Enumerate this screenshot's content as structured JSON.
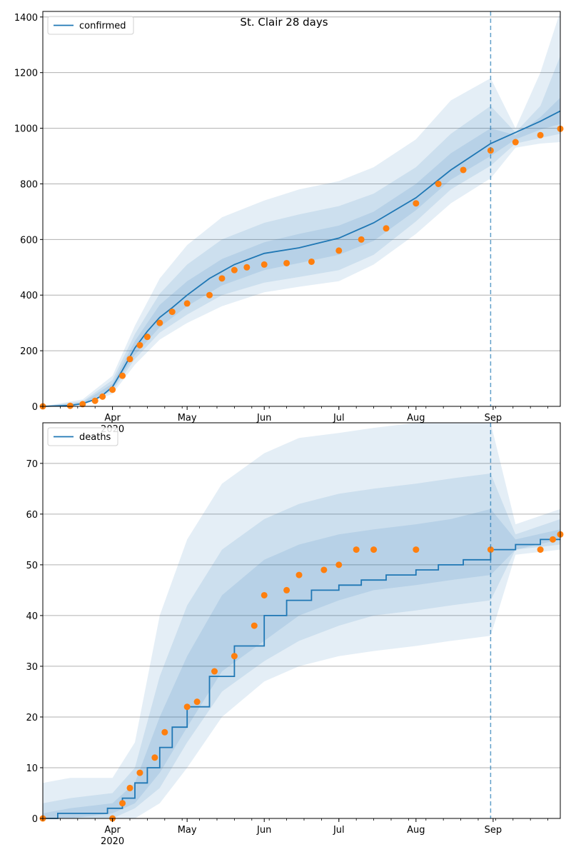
{
  "figure": {
    "title": "St. Clair 28 days"
  },
  "colors": {
    "model": "#1f77b4",
    "observed": "#ff7f0e",
    "band": "#1f77b4",
    "grid": "#b0b0b0",
    "forecast_line": "#1f77b4"
  },
  "chart_data": [
    {
      "type": "line",
      "title": "St. Clair 28 days",
      "legend": [
        "confirmed"
      ],
      "legend_position": "top-left",
      "grid": "horizontal",
      "xlim": [
        "2020-03-04",
        "2020-09-28"
      ],
      "ylim": [
        0,
        1420
      ],
      "y_ticks": [
        0,
        200,
        400,
        600,
        800,
        1000,
        1200,
        1400
      ],
      "x_ticks": [
        {
          "date": "2020-04-01",
          "label": "Apr",
          "sublabel": "2020"
        },
        {
          "date": "2020-05-01",
          "label": "May"
        },
        {
          "date": "2020-06-01",
          "label": "Jun"
        },
        {
          "date": "2020-07-01",
          "label": "Jul"
        },
        {
          "date": "2020-08-01",
          "label": "Aug"
        },
        {
          "date": "2020-09-01",
          "label": "Sep"
        }
      ],
      "forecast_start": "2020-08-31",
      "series": [
        {
          "name": "confirmed",
          "style": "line",
          "x": [
            "2020-03-04",
            "2020-03-15",
            "2020-03-20",
            "2020-03-25",
            "2020-03-28",
            "2020-04-01",
            "2020-04-05",
            "2020-04-10",
            "2020-04-15",
            "2020-04-20",
            "2020-04-25",
            "2020-05-01",
            "2020-05-10",
            "2020-05-20",
            "2020-06-01",
            "2020-06-15",
            "2020-07-01",
            "2020-07-15",
            "2020-08-01",
            "2020-08-15",
            "2020-08-31",
            "2020-09-10",
            "2020-09-20",
            "2020-09-28"
          ],
          "y": [
            0,
            3,
            10,
            25,
            40,
            70,
            130,
            210,
            270,
            320,
            355,
            400,
            460,
            510,
            550,
            570,
            605,
            660,
            750,
            850,
            945,
            985,
            1025,
            1062
          ]
        },
        {
          "style": "markers",
          "x": [
            "2020-03-04",
            "2020-03-15",
            "2020-03-20",
            "2020-03-25",
            "2020-03-28",
            "2020-04-01",
            "2020-04-05",
            "2020-04-08",
            "2020-04-12",
            "2020-04-15",
            "2020-04-20",
            "2020-04-25",
            "2020-05-01",
            "2020-05-10",
            "2020-05-15",
            "2020-05-20",
            "2020-05-25",
            "2020-06-01",
            "2020-06-10",
            "2020-06-20",
            "2020-07-01",
            "2020-07-10",
            "2020-07-20",
            "2020-08-01",
            "2020-08-10",
            "2020-08-20",
            "2020-08-31",
            "2020-09-10",
            "2020-09-20",
            "2020-09-28"
          ],
          "y": [
            0,
            2,
            8,
            20,
            35,
            60,
            110,
            170,
            220,
            250,
            300,
            340,
            370,
            400,
            460,
            490,
            500,
            510,
            515,
            520,
            560,
            600,
            640,
            730,
            800,
            850,
            920,
            950,
            975,
            998
          ]
        }
      ],
      "bands": [
        {
          "x": [
            "2020-03-04",
            "2020-03-20",
            "2020-04-01",
            "2020-04-10",
            "2020-04-20",
            "2020-05-01",
            "2020-05-15",
            "2020-06-01",
            "2020-06-15",
            "2020-07-01",
            "2020-07-15",
            "2020-08-01",
            "2020-08-15",
            "2020-08-31",
            "2020-09-10",
            "2020-09-20",
            "2020-09-28"
          ],
          "lower": [
            0,
            5,
            45,
            150,
            240,
            300,
            360,
            410,
            430,
            450,
            510,
            620,
            730,
            820,
            930,
            945,
            950
          ],
          "upper": [
            0,
            25,
            110,
            290,
            460,
            580,
            680,
            740,
            780,
            810,
            860,
            960,
            1100,
            1180,
            1000,
            1200,
            1420
          ]
        },
        {
          "x": [
            "2020-03-04",
            "2020-03-20",
            "2020-04-01",
            "2020-04-10",
            "2020-04-20",
            "2020-05-01",
            "2020-05-15",
            "2020-06-01",
            "2020-06-15",
            "2020-07-01",
            "2020-07-15",
            "2020-08-01",
            "2020-08-15",
            "2020-08-31",
            "2020-09-10",
            "2020-09-20",
            "2020-09-28"
          ],
          "lower": [
            0,
            7,
            55,
            170,
            265,
            330,
            400,
            445,
            465,
            490,
            545,
            665,
            780,
            865,
            945,
            965,
            980
          ],
          "upper": [
            0,
            18,
            95,
            260,
            405,
            510,
            600,
            660,
            690,
            720,
            765,
            860,
            980,
            1080,
            985,
            1080,
            1260
          ]
        },
        {
          "x": [
            "2020-03-04",
            "2020-03-20",
            "2020-04-01",
            "2020-04-10",
            "2020-04-20",
            "2020-05-01",
            "2020-05-15",
            "2020-06-01",
            "2020-06-15",
            "2020-07-01",
            "2020-07-15",
            "2020-08-01",
            "2020-08-15",
            "2020-08-31",
            "2020-09-10",
            "2020-09-20",
            "2020-09-28"
          ],
          "lower": [
            0,
            8,
            62,
            185,
            285,
            360,
            435,
            490,
            515,
            545,
            595,
            705,
            815,
            900,
            960,
            995,
            1015
          ],
          "upper": [
            0,
            14,
            82,
            235,
            365,
            450,
            530,
            590,
            620,
            650,
            700,
            800,
            910,
            1000,
            975,
            1040,
            1110
          ]
        }
      ]
    },
    {
      "type": "line",
      "legend": [
        "deaths"
      ],
      "legend_position": "top-left",
      "grid": "horizontal",
      "xlim": [
        "2020-03-04",
        "2020-09-28"
      ],
      "ylim": [
        0,
        78
      ],
      "y_ticks": [
        0,
        10,
        20,
        30,
        40,
        50,
        60,
        70
      ],
      "x_ticks": [
        {
          "date": "2020-04-01",
          "label": "Apr",
          "sublabel": "2020"
        },
        {
          "date": "2020-05-01",
          "label": "May"
        },
        {
          "date": "2020-06-01",
          "label": "Jun"
        },
        {
          "date": "2020-07-01",
          "label": "Jul"
        },
        {
          "date": "2020-08-01",
          "label": "Aug"
        },
        {
          "date": "2020-09-01",
          "label": "Sep"
        }
      ],
      "forecast_start": "2020-08-31",
      "series": [
        {
          "name": "deaths",
          "style": "step",
          "x": [
            "2020-03-04",
            "2020-03-10",
            "2020-03-30",
            "2020-04-05",
            "2020-04-10",
            "2020-04-15",
            "2020-04-20",
            "2020-04-25",
            "2020-05-01",
            "2020-05-10",
            "2020-05-20",
            "2020-06-01",
            "2020-06-10",
            "2020-06-20",
            "2020-07-01",
            "2020-07-10",
            "2020-07-20",
            "2020-08-01",
            "2020-08-10",
            "2020-08-20",
            "2020-08-31",
            "2020-09-10",
            "2020-09-20",
            "2020-09-28"
          ],
          "y": [
            0,
            1,
            2,
            4,
            7,
            10,
            14,
            18,
            22,
            28,
            34,
            40,
            43,
            45,
            46,
            47,
            48,
            49,
            50,
            51,
            53,
            54,
            55,
            55
          ]
        },
        {
          "style": "markers",
          "x": [
            "2020-03-04",
            "2020-04-01",
            "2020-04-05",
            "2020-04-08",
            "2020-04-12",
            "2020-04-18",
            "2020-04-22",
            "2020-05-01",
            "2020-05-05",
            "2020-05-12",
            "2020-05-20",
            "2020-05-28",
            "2020-06-01",
            "2020-06-10",
            "2020-06-15",
            "2020-06-25",
            "2020-07-01",
            "2020-07-08",
            "2020-07-15",
            "2020-08-01",
            "2020-08-31",
            "2020-09-20",
            "2020-09-25",
            "2020-09-28"
          ],
          "y": [
            0,
            0,
            3,
            6,
            9,
            12,
            17,
            22,
            23,
            29,
            32,
            38,
            44,
            45,
            48,
            49,
            50,
            53,
            53,
            53,
            53,
            53,
            55,
            56
          ]
        }
      ],
      "bands": [
        {
          "x": [
            "2020-03-04",
            "2020-03-15",
            "2020-04-01",
            "2020-04-10",
            "2020-04-20",
            "2020-05-01",
            "2020-05-15",
            "2020-06-01",
            "2020-06-15",
            "2020-07-01",
            "2020-07-15",
            "2020-08-01",
            "2020-08-15",
            "2020-08-31",
            "2020-09-10",
            "2020-09-28"
          ],
          "lower": [
            0,
            0,
            0,
            0,
            3,
            10,
            20,
            27,
            30,
            32,
            33,
            34,
            35,
            36,
            52,
            53
          ],
          "upper": [
            7,
            8,
            8,
            15,
            40,
            55,
            66,
            72,
            75,
            76,
            77,
            78,
            78,
            78,
            58,
            61
          ]
        },
        {
          "x": [
            "2020-03-04",
            "2020-03-15",
            "2020-04-01",
            "2020-04-10",
            "2020-04-20",
            "2020-05-01",
            "2020-05-15",
            "2020-06-01",
            "2020-06-15",
            "2020-07-01",
            "2020-07-15",
            "2020-08-01",
            "2020-08-15",
            "2020-08-31",
            "2020-09-10",
            "2020-09-28"
          ],
          "lower": [
            0,
            0,
            0,
            2,
            6,
            15,
            25,
            31,
            35,
            38,
            40,
            41,
            42,
            43,
            53,
            54
          ],
          "upper": [
            3,
            4,
            5,
            10,
            28,
            42,
            53,
            59,
            62,
            64,
            65,
            66,
            67,
            68,
            56,
            59
          ]
        },
        {
          "x": [
            "2020-03-04",
            "2020-03-15",
            "2020-04-01",
            "2020-04-10",
            "2020-04-20",
            "2020-05-01",
            "2020-05-15",
            "2020-06-01",
            "2020-06-15",
            "2020-07-01",
            "2020-07-15",
            "2020-08-01",
            "2020-08-15",
            "2020-08-31",
            "2020-09-10",
            "2020-09-28"
          ],
          "lower": [
            0,
            0,
            1,
            3,
            9,
            18,
            29,
            35,
            40,
            43,
            45,
            46,
            47,
            48,
            53,
            55
          ],
          "upper": [
            1,
            2,
            3,
            7,
            20,
            32,
            44,
            51,
            54,
            56,
            57,
            58,
            59,
            61,
            55,
            57
          ]
        }
      ]
    }
  ]
}
